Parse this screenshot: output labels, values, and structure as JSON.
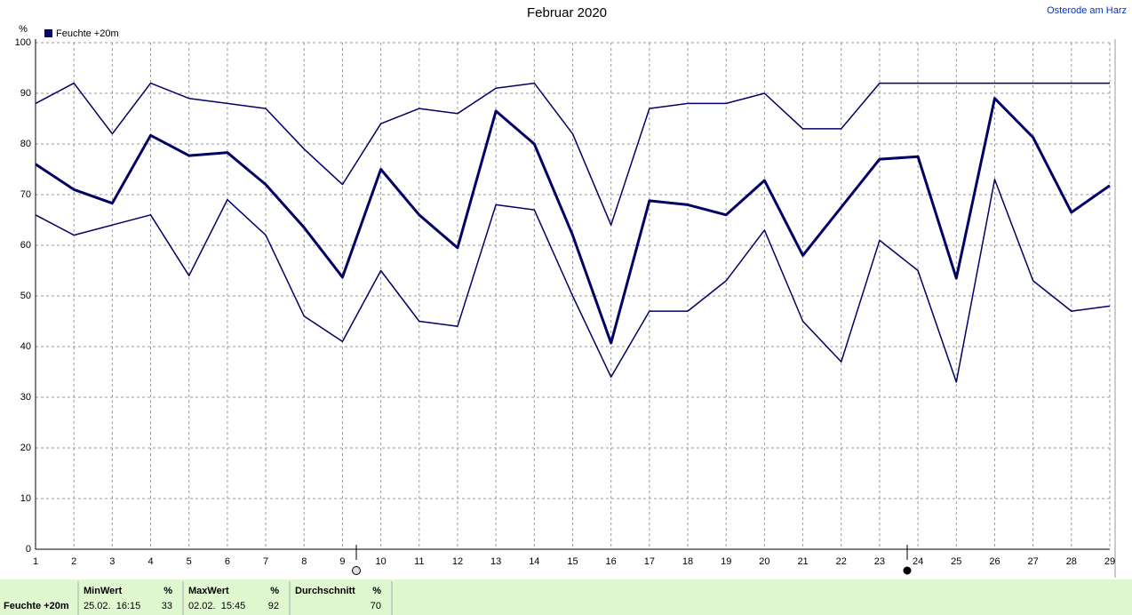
{
  "chart_data": {
    "type": "line",
    "title": "Februar 2020",
    "location": "Osterode am Harz",
    "y_label": "%",
    "legend": "Feuchte +20m",
    "x": [
      1,
      2,
      3,
      4,
      5,
      6,
      7,
      8,
      9,
      10,
      11,
      12,
      13,
      14,
      15,
      16,
      17,
      18,
      19,
      20,
      21,
      22,
      23,
      24,
      25,
      26,
      27,
      28,
      29
    ],
    "xlim": [
      1,
      29
    ],
    "xticks": [
      1,
      2,
      3,
      4,
      5,
      6,
      7,
      8,
      9,
      10,
      11,
      12,
      13,
      14,
      15,
      16,
      17,
      18,
      19,
      20,
      21,
      22,
      23,
      24,
      25,
      26,
      27,
      28,
      29
    ],
    "ylim": [
      0,
      100
    ],
    "yticks": [
      0,
      10,
      20,
      30,
      40,
      50,
      60,
      70,
      80,
      90,
      100
    ],
    "grid": true,
    "series": [
      {
        "color": "#000066",
        "line_width": 1.5,
        "values": [
          88,
          92,
          82,
          92,
          89,
          88,
          87,
          79,
          72,
          84,
          87,
          86,
          91,
          92,
          82,
          64,
          87,
          88,
          88,
          90,
          83,
          83,
          92,
          92,
          92,
          92,
          92,
          92,
          92
        ]
      },
      {
        "color": "#000066",
        "line_width": 3,
        "values": [
          76,
          71,
          68.3,
          81.7,
          77.7,
          78.3,
          72,
          63.5,
          53.7,
          75,
          66,
          59.5,
          86.5,
          80,
          62,
          40.7,
          68.8,
          68,
          66,
          72.8,
          58,
          67.5,
          77,
          77.5,
          53.5,
          89,
          81.3,
          66.5,
          71.8
        ]
      },
      {
        "color": "#000066",
        "line_width": 1.5,
        "values": [
          66,
          62,
          64,
          66,
          54,
          69,
          62,
          46,
          41,
          55,
          45,
          44,
          68,
          67,
          50,
          34,
          47,
          47,
          53,
          63,
          45,
          37,
          61,
          55,
          33,
          73,
          53,
          47,
          48
        ]
      }
    ]
  },
  "table": {
    "row_label": "Feuchte +20m",
    "columns": [
      {
        "header": "MinWert",
        "unit": "%",
        "time": "25.02.  16:15",
        "value": 33
      },
      {
        "header": "MaxWert",
        "unit": "%",
        "time": "02.02.  15:45",
        "value": 92
      },
      {
        "header": "Durchschnitt",
        "unit": "%",
        "value": 70
      }
    ]
  }
}
